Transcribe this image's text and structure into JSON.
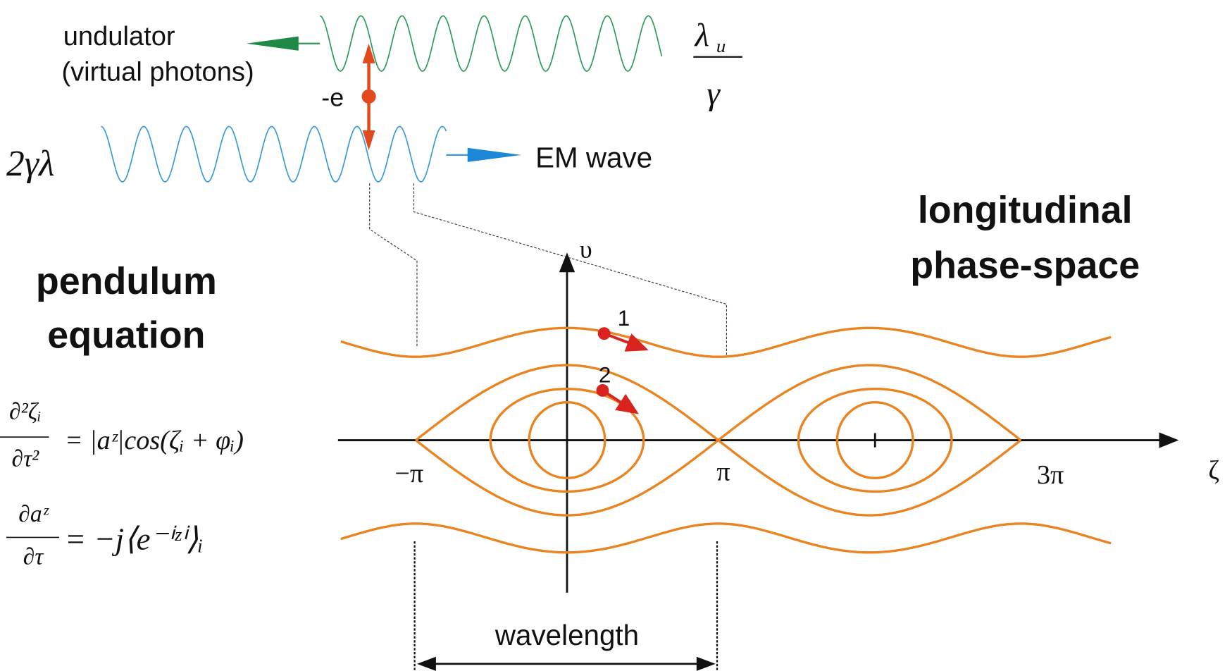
{
  "top": {
    "undulator": "undulator",
    "virtual_photons": "(virtual photons)",
    "lambda_u": "λ",
    "lambda_u_sub": "u",
    "gamma": "γ",
    "electron": "-e",
    "em_wavelength": "2γλ",
    "em_wave": "EM wave"
  },
  "left": {
    "title_line1": "pendulum",
    "title_line2": "equation",
    "eq1_num": "∂²ζᵢ",
    "eq1_den": "∂τ²",
    "eq1_rhs": "= |aᶻ|cos(ζᵢ + φᵢ)",
    "eq2_num": "∂aᶻ",
    "eq2_den": "∂τ",
    "eq2_rhs": "= −j⟨e⁻ⁱᶻⁱ⟩ᵢ"
  },
  "phase_space": {
    "title_line1": "longitudinal",
    "title_line2": "phase-space",
    "y_axis": "υ",
    "x_axis": "ζ",
    "tick_minus_pi": "−π",
    "tick_pi": "π",
    "tick_3pi": "3π",
    "particle_1": "1",
    "particle_2": "2",
    "wavelength": "wavelength"
  }
}
